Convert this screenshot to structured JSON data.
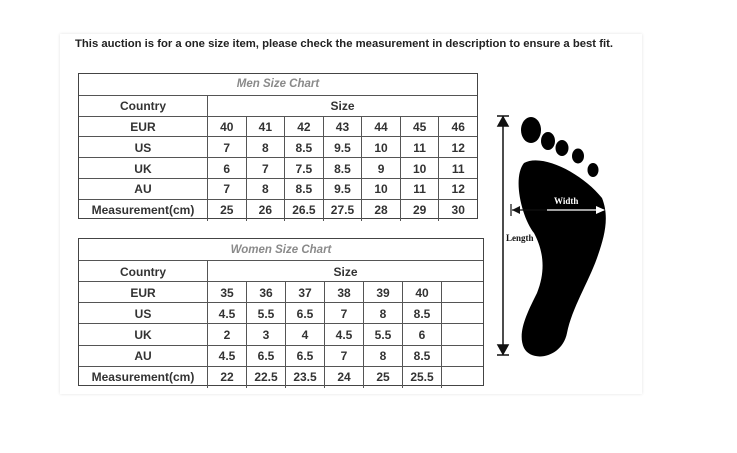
{
  "notice": "This auction is for a one size item, please check the measurement in description to ensure a best fit.",
  "men_chart": {
    "title": "Men Size Chart",
    "header": [
      "Country",
      "Size"
    ],
    "rows": [
      {
        "label": "EUR",
        "values": [
          "40",
          "41",
          "42",
          "43",
          "44",
          "45",
          "46"
        ]
      },
      {
        "label": "US",
        "values": [
          "7",
          "8",
          "8.5",
          "9.5",
          "10",
          "11",
          "12"
        ]
      },
      {
        "label": "UK",
        "values": [
          "6",
          "7",
          "7.5",
          "8.5",
          "9",
          "10",
          "11"
        ]
      },
      {
        "label": "AU",
        "values": [
          "7",
          "8",
          "8.5",
          "9.5",
          "10",
          "11",
          "12"
        ]
      },
      {
        "label": "Measurement(cm)",
        "values": [
          "25",
          "26",
          "26.5",
          "27.5",
          "28",
          "29",
          "30"
        ]
      }
    ]
  },
  "women_chart": {
    "title": "Women Size Chart",
    "header": [
      "Country",
      "Size"
    ],
    "rows": [
      {
        "label": "EUR",
        "values": [
          "35",
          "36",
          "37",
          "38",
          "39",
          "40"
        ]
      },
      {
        "label": "US",
        "values": [
          "4.5",
          "5.5",
          "6.5",
          "7",
          "8",
          "8.5"
        ]
      },
      {
        "label": "UK",
        "values": [
          "2",
          "3",
          "4",
          "4.5",
          "5.5",
          "6"
        ]
      },
      {
        "label": "AU",
        "values": [
          "4.5",
          "6.5",
          "6.5",
          "7",
          "8",
          "8.5"
        ]
      },
      {
        "label": "Measurement(cm)",
        "values": [
          "22",
          "22.5",
          "23.5",
          "24",
          "25",
          "25.5"
        ]
      }
    ]
  },
  "foot_diagram": {
    "width_label": "Width",
    "length_label": "Length"
  }
}
